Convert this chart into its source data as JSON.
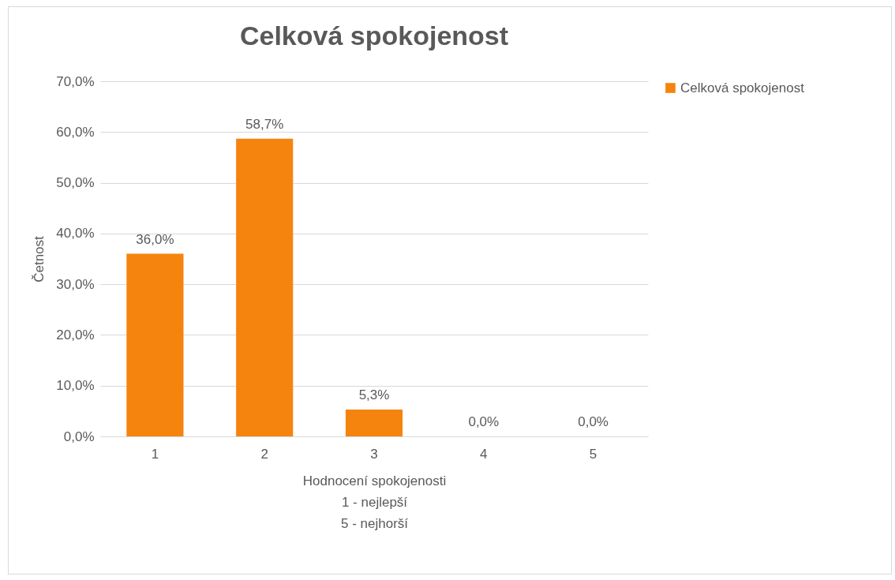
{
  "chart_data": {
    "type": "bar",
    "title": "Celková spokojenost",
    "xlabel": "Hodnocení spokojenosti\n1 - nejlepší\n5 - nejhorší",
    "ylabel": "Četnost",
    "categories": [
      "1",
      "2",
      "3",
      "4",
      "5"
    ],
    "series": [
      {
        "name": "Celková spokojenost",
        "color": "#f5840f",
        "values": [
          36.0,
          58.7,
          5.3,
          0.0,
          0.0
        ],
        "value_labels": [
          "36,0%",
          "58,7%",
          "5,3%",
          "0,0%",
          "0,0%"
        ]
      }
    ],
    "ylim": [
      0,
      70
    ],
    "yticks": [
      {
        "value": 0,
        "label": "0,0%"
      },
      {
        "value": 10,
        "label": "10,0%"
      },
      {
        "value": 20,
        "label": "20,0%"
      },
      {
        "value": 30,
        "label": "30,0%"
      },
      {
        "value": 40,
        "label": "40,0%"
      },
      {
        "value": 50,
        "label": "50,0%"
      },
      {
        "value": 60,
        "label": "60,0%"
      },
      {
        "value": 70,
        "label": "70,0%"
      }
    ],
    "grid": true,
    "legend": "right"
  }
}
